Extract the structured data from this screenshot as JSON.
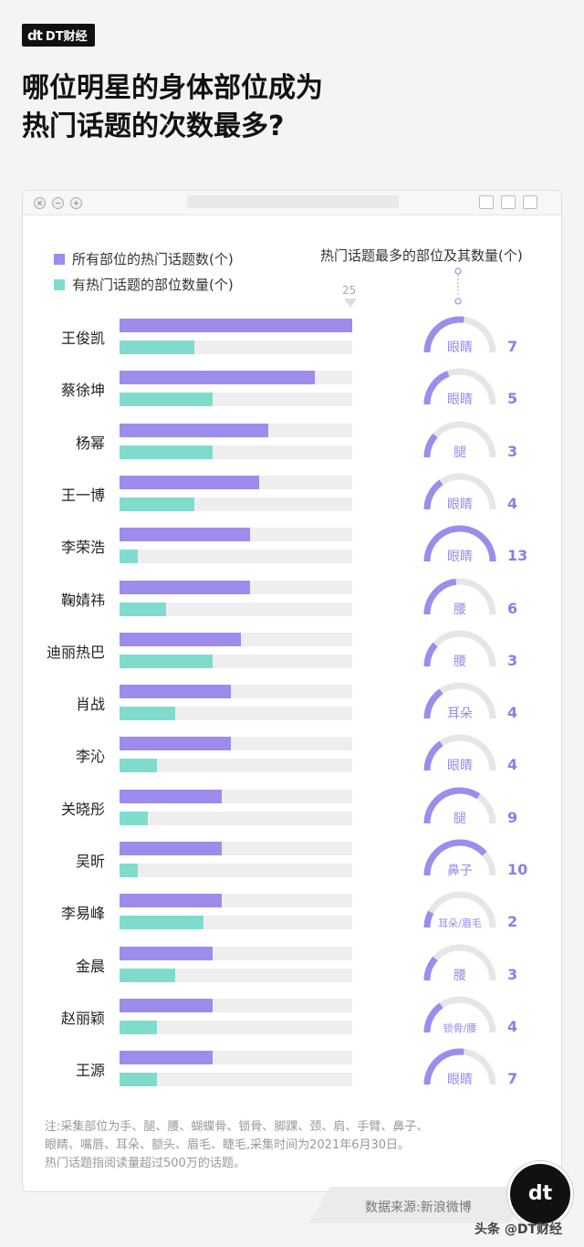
{
  "brand": {
    "logo_mark": "dt",
    "logo_text": "DT财经"
  },
  "title": {
    "line1": "哪位明星的身体部位成为",
    "line2": "热门话题的次数最多?"
  },
  "colors": {
    "purple": "#9d8cec",
    "teal": "#7fdccd",
    "gauge_bg": "#e6e6e6",
    "gauge_fg": "#9d8cec",
    "track": "#eeeeee"
  },
  "legend": {
    "series1": "所有部位的热门话题数(个)",
    "series2": "有热门话题的部位数量(个)"
  },
  "right_header": "热门话题最多的部位及其数量(个)",
  "axis_max_label": "25",
  "chart_data": {
    "type": "bar",
    "orientation": "horizontal",
    "xlim": [
      0,
      25
    ],
    "categories": [
      "王俊凯",
      "蔡徐坤",
      "杨幂",
      "王一博",
      "李荣浩",
      "鞠婧祎",
      "迪丽热巴",
      "肖战",
      "李沁",
      "关晓彤",
      "吴昕",
      "李易峰",
      "金晨",
      "赵丽颖",
      "王源"
    ],
    "series": [
      {
        "name": "所有部位的热门话题数(个)",
        "values": [
          25,
          21,
          16,
          15,
          14,
          14,
          13,
          12,
          12,
          11,
          11,
          11,
          10,
          10,
          10
        ]
      },
      {
        "name": "有热门话题的部位数量(个)",
        "values": [
          8,
          10,
          10,
          8,
          2,
          5,
          10,
          6,
          4,
          3,
          2,
          9,
          6,
          4,
          4
        ]
      }
    ],
    "top_part": [
      "眼睛",
      "眼睛",
      "腿",
      "眼睛",
      "眼睛",
      "腰",
      "腰",
      "耳朵",
      "眼睛",
      "腿",
      "鼻子",
      "耳朵/眉毛",
      "腰",
      "锁骨/腰",
      "眼睛"
    ],
    "top_part_count": [
      7,
      5,
      3,
      4,
      13,
      6,
      3,
      4,
      4,
      9,
      10,
      2,
      3,
      4,
      7
    ]
  },
  "note": {
    "line1": "注:采集部位为手、腿、腰、蝴蝶骨、锁骨、脚踝、颈、肩、手臂、鼻子、",
    "line2": "眼睛、嘴唇、耳朵、额头、眉毛、睫毛,采集时间为2021年6月30日。",
    "line3": "热门话题指阅读量超过500万的话题。"
  },
  "source": "数据来源:新浪微博",
  "footer_watermark": "头条 @DT财经",
  "circle_logo": "dt"
}
